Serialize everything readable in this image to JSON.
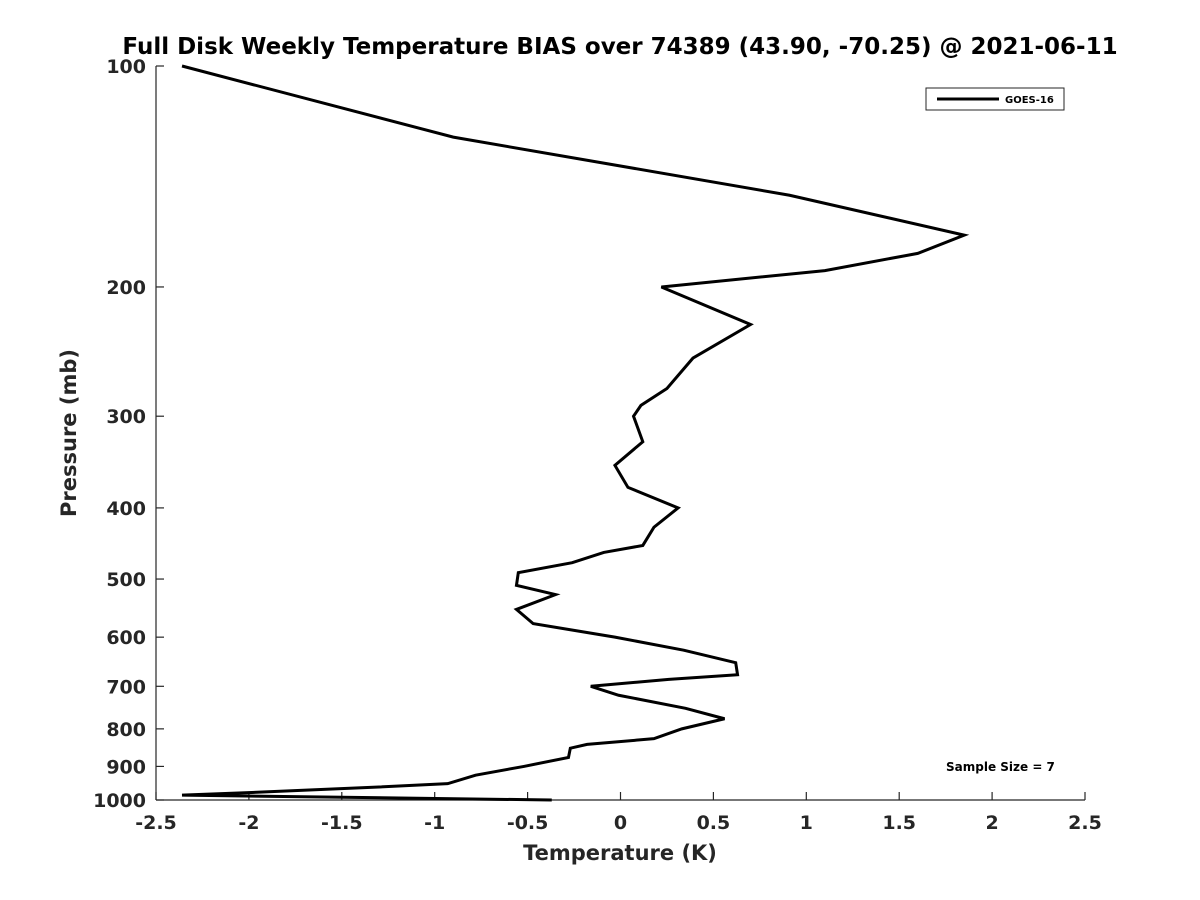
{
  "chart_data": {
    "type": "line",
    "title": "Full Disk Weekly Temperature BIAS over 74389 (43.90, -70.25) @ 2021-06-11",
    "xlabel": "Temperature (K)",
    "ylabel": "Pressure (mb)",
    "xlim": [
      -2.5,
      2.5
    ],
    "ylim": [
      1000,
      100
    ],
    "yscale": "log",
    "y_reversed": true,
    "x_ticks": [
      -2.5,
      -2,
      -1.5,
      -1,
      -0.5,
      0,
      0.5,
      1,
      1.5,
      2,
      2.5
    ],
    "x_tick_labels": [
      "-2.5",
      "-2",
      "-1.5",
      "-1",
      "-0.5",
      "0",
      "0.5",
      "1",
      "1.5",
      "2",
      "2.5"
    ],
    "y_ticks": [
      100,
      200,
      300,
      400,
      500,
      600,
      700,
      800,
      900,
      1000
    ],
    "y_tick_labels": [
      "100",
      "200",
      "300",
      "400",
      "500",
      "600",
      "700",
      "800",
      "900",
      "1000"
    ],
    "grid": false,
    "legend_position": "top-right",
    "series": [
      {
        "name": "GOES-16",
        "color": "#000000",
        "points": [
          {
            "x": -2.36,
            "p": 100
          },
          {
            "x": -0.9,
            "p": 125
          },
          {
            "x": 0.91,
            "p": 150
          },
          {
            "x": 1.85,
            "p": 170
          },
          {
            "x": 1.6,
            "p": 180
          },
          {
            "x": 1.1,
            "p": 190
          },
          {
            "x": 0.22,
            "p": 200
          },
          {
            "x": 0.7,
            "p": 225
          },
          {
            "x": 0.39,
            "p": 250
          },
          {
            "x": 0.25,
            "p": 275
          },
          {
            "x": 0.11,
            "p": 290
          },
          {
            "x": 0.07,
            "p": 300
          },
          {
            "x": 0.12,
            "p": 325
          },
          {
            "x": -0.03,
            "p": 350
          },
          {
            "x": 0.04,
            "p": 375
          },
          {
            "x": 0.31,
            "p": 400
          },
          {
            "x": 0.18,
            "p": 425
          },
          {
            "x": 0.12,
            "p": 450
          },
          {
            "x": -0.09,
            "p": 460
          },
          {
            "x": -0.26,
            "p": 475
          },
          {
            "x": -0.55,
            "p": 490
          },
          {
            "x": -0.56,
            "p": 510
          },
          {
            "x": -0.35,
            "p": 525
          },
          {
            "x": -0.56,
            "p": 550
          },
          {
            "x": -0.47,
            "p": 575
          },
          {
            "x": -0.03,
            "p": 600
          },
          {
            "x": 0.34,
            "p": 625
          },
          {
            "x": 0.62,
            "p": 650
          },
          {
            "x": 0.63,
            "p": 675
          },
          {
            "x": 0.26,
            "p": 685
          },
          {
            "x": -0.16,
            "p": 700
          },
          {
            "x": -0.01,
            "p": 720
          },
          {
            "x": 0.35,
            "p": 750
          },
          {
            "x": 0.56,
            "p": 775
          },
          {
            "x": 0.33,
            "p": 800
          },
          {
            "x": 0.18,
            "p": 825
          },
          {
            "x": -0.18,
            "p": 840
          },
          {
            "x": -0.27,
            "p": 850
          },
          {
            "x": -0.28,
            "p": 875
          },
          {
            "x": -0.52,
            "p": 900
          },
          {
            "x": -0.78,
            "p": 925
          },
          {
            "x": -0.93,
            "p": 950
          },
          {
            "x": -1.3,
            "p": 960
          },
          {
            "x": -1.91,
            "p": 975
          },
          {
            "x": -2.36,
            "p": 985
          },
          {
            "x": -0.37,
            "p": 1000
          }
        ]
      }
    ],
    "annotations": [
      {
        "text": "Sample Size = 7"
      }
    ]
  }
}
